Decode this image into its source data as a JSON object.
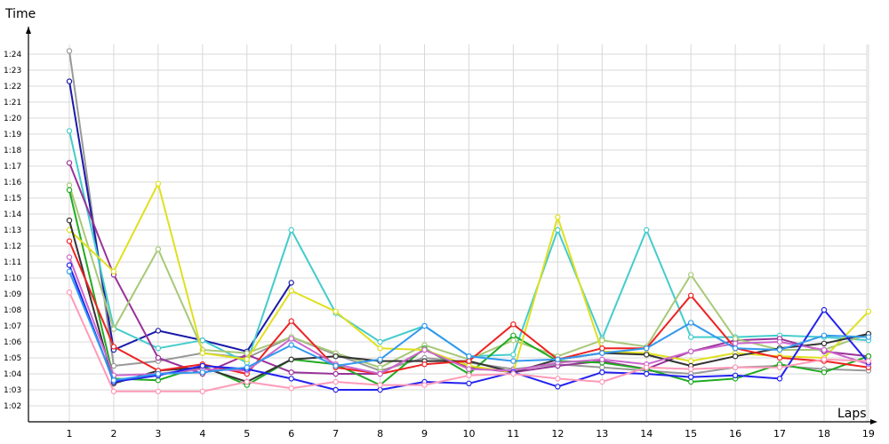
{
  "chart_data": {
    "type": "line",
    "title": "",
    "xlabel": "Laps",
    "ylabel": "Time",
    "x": [
      1,
      2,
      3,
      4,
      5,
      6,
      7,
      8,
      9,
      10,
      11,
      12,
      13,
      14,
      15,
      16,
      17,
      18,
      19
    ],
    "ylim": [
      61,
      86
    ],
    "yticks": [
      62,
      63,
      64,
      65,
      66,
      67,
      68,
      69,
      70,
      71,
      72,
      73,
      74,
      75,
      76,
      77,
      78,
      79,
      80,
      81,
      82,
      83,
      84
    ],
    "ytick_labels": [
      "1:02",
      "1:03",
      "1:04",
      "1:05",
      "1:06",
      "1:07",
      "1:08",
      "1:09",
      "1:10",
      "1:11",
      "1:12",
      "1:13",
      "1:14",
      "1:15",
      "1:16",
      "1:17",
      "1:18",
      "1:19",
      "1:20",
      "1:21",
      "1:22",
      "1:23",
      "1:24"
    ],
    "grid": true,
    "series": [
      {
        "color": "#999999",
        "values": [
          84.2,
          64.5,
          64.8,
          65.3,
          65.0,
          66.3,
          65.2,
          64.2,
          65.0,
          64.7,
          64.3,
          64.6,
          64.4,
          64.2,
          64.0,
          64.4,
          64.5,
          64.3,
          64.2
        ]
      },
      {
        "color": "#1a1aa8",
        "values": [
          82.3,
          65.5,
          66.7,
          66.1,
          65.4,
          69.7,
          null,
          null,
          null,
          null,
          null,
          null,
          null,
          null,
          null,
          null,
          null,
          null,
          null
        ]
      },
      {
        "color": "#44cccc",
        "values": [
          79.2,
          66.9,
          65.6,
          66.1,
          64.7,
          73.0,
          67.8,
          66.0,
          67.0,
          65.1,
          65.2,
          73.0,
          66.2,
          73.0,
          66.3,
          66.3,
          66.4,
          66.3,
          66.1
        ]
      },
      {
        "color": "#993399",
        "values": [
          77.2,
          70.2,
          65.0,
          64.0,
          65.2,
          64.1,
          64.0,
          64.0,
          65.5,
          64.4,
          64.1,
          64.5,
          64.8,
          64.3,
          65.4,
          66.1,
          66.2,
          65.4,
          65.1
        ]
      },
      {
        "color": "#a8c878",
        "values": [
          75.8,
          66.8,
          71.8,
          65.5,
          65.3,
          66.3,
          65.3,
          64.4,
          65.8,
          64.9,
          66.1,
          65.1,
          66.1,
          65.7,
          70.2,
          66.2,
          65.5,
          65.5,
          66.5
        ]
      },
      {
        "color": "#22aa22",
        "values": [
          75.5,
          63.7,
          63.6,
          64.5,
          63.3,
          64.9,
          64.6,
          63.3,
          65.6,
          64.0,
          66.4,
          64.8,
          64.7,
          64.3,
          63.5,
          63.7,
          64.6,
          64.1,
          65.1
        ]
      },
      {
        "color": "#e0e020",
        "values": [
          73.0,
          70.4,
          75.9,
          65.3,
          64.9,
          69.2,
          67.9,
          65.6,
          65.5,
          64.5,
          64.1,
          73.8,
          65.4,
          65.3,
          64.8,
          65.3,
          65.1,
          65.0,
          67.9
        ]
      },
      {
        "color": "#333333",
        "values": [
          73.6,
          63.4,
          64.2,
          64.4,
          63.5,
          64.9,
          65.1,
          64.8,
          64.8,
          64.8,
          64.1,
          64.9,
          65.3,
          65.2,
          64.5,
          65.1,
          65.6,
          65.9,
          66.5
        ]
      },
      {
        "color": "#ee2222",
        "values": [
          72.3,
          65.7,
          64.2,
          64.6,
          64.0,
          67.3,
          64.4,
          64.0,
          64.6,
          64.8,
          67.1,
          64.9,
          65.6,
          65.6,
          68.9,
          65.6,
          65.0,
          64.8,
          64.4
        ]
      },
      {
        "color": "#cc66cc",
        "values": [
          71.3,
          63.9,
          64.0,
          64.3,
          64.2,
          66.2,
          64.6,
          64.0,
          65.5,
          64.3,
          64.2,
          64.7,
          64.9,
          64.6,
          65.4,
          65.9,
          66.0,
          65.5,
          64.6
        ]
      },
      {
        "color": "#2222ee",
        "values": [
          70.8,
          63.5,
          63.9,
          64.5,
          64.3,
          63.7,
          63.0,
          63.0,
          63.5,
          63.4,
          64.1,
          63.2,
          64.1,
          64.0,
          63.8,
          63.9,
          63.7,
          68.0,
          64.7
        ]
      },
      {
        "color": "#3399ee",
        "values": [
          70.4,
          63.6,
          64.0,
          64.1,
          64.4,
          65.8,
          64.5,
          64.9,
          67.0,
          65.1,
          64.8,
          64.9,
          65.3,
          65.6,
          67.2,
          65.6,
          65.5,
          66.4,
          66.3
        ]
      },
      {
        "color": "#ff9ab8",
        "values": [
          69.1,
          62.9,
          62.9,
          62.9,
          63.5,
          63.1,
          63.5,
          63.3,
          63.3,
          63.9,
          64.0,
          63.7,
          63.5,
          64.4,
          64.3,
          64.4,
          64.4,
          64.9,
          64.8
        ]
      }
    ]
  }
}
